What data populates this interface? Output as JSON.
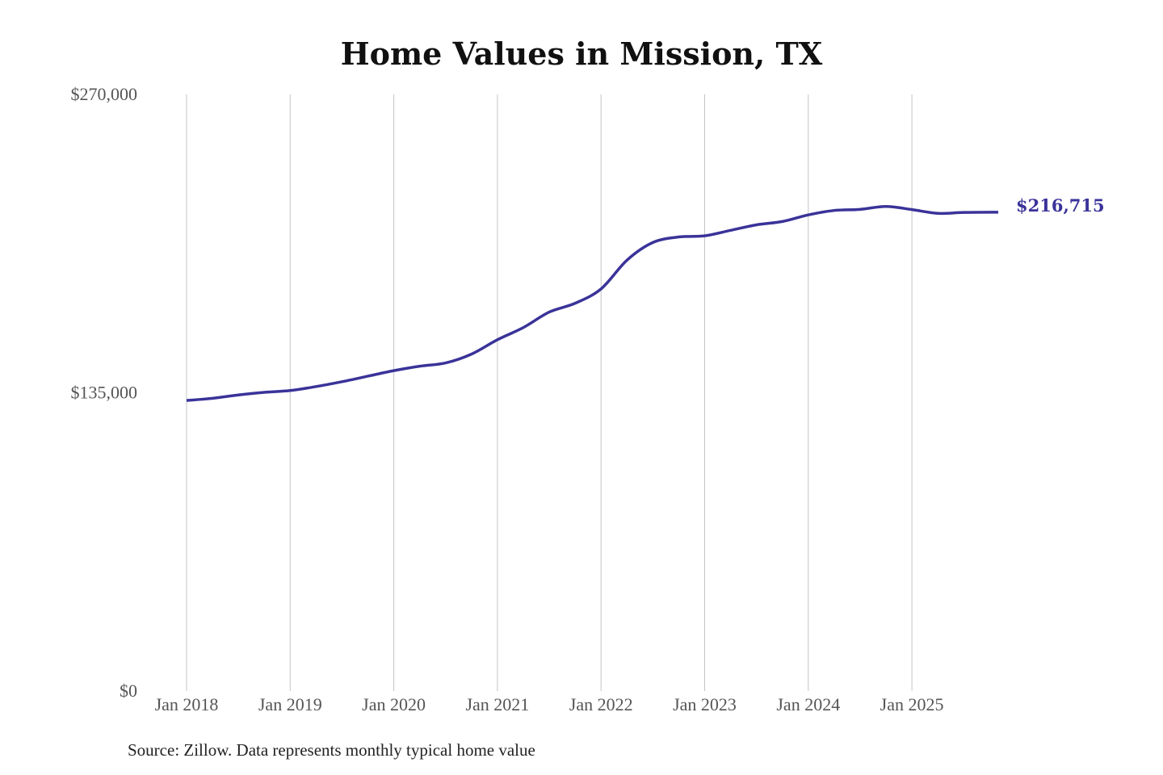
{
  "chart_data": {
    "type": "line",
    "title": "Home Values in Mission, TX",
    "source": "Source: Zillow. Data represents monthly typical home value",
    "xlabel": "",
    "ylabel": "",
    "ylim": [
      0,
      270000
    ],
    "y_ticks": [
      {
        "value": 0,
        "label": "$0"
      },
      {
        "value": 135000,
        "label": "$135,000"
      },
      {
        "value": 270000,
        "label": "$270,000"
      }
    ],
    "x_ticks": [
      {
        "value": "2018-01",
        "label": "Jan 2018"
      },
      {
        "value": "2019-01",
        "label": "Jan 2019"
      },
      {
        "value": "2020-01",
        "label": "Jan 2020"
      },
      {
        "value": "2021-01",
        "label": "Jan 2021"
      },
      {
        "value": "2022-01",
        "label": "Jan 2022"
      },
      {
        "value": "2023-01",
        "label": "Jan 2023"
      },
      {
        "value": "2024-01",
        "label": "Jan 2024"
      },
      {
        "value": "2025-01",
        "label": "Jan 2025"
      }
    ],
    "grid": "vertical",
    "line_color": "#3a3399",
    "end_label": "$216,715",
    "series": [
      {
        "x": [
          "2018-01",
          "2018-04",
          "2018-07",
          "2018-10",
          "2019-01",
          "2019-04",
          "2019-07",
          "2019-10",
          "2020-01",
          "2020-04",
          "2020-07",
          "2020-10",
          "2021-01",
          "2021-04",
          "2021-07",
          "2021-10",
          "2022-01",
          "2022-04",
          "2022-07",
          "2022-10",
          "2023-01",
          "2023-04",
          "2023-07",
          "2023-10",
          "2024-01",
          "2024-04",
          "2024-07",
          "2024-10",
          "2025-01",
          "2025-04",
          "2025-07",
          "2025-11"
        ],
        "values": [
          131500,
          132500,
          134000,
          135200,
          136000,
          137800,
          140000,
          142500,
          145000,
          147000,
          148500,
          152500,
          159000,
          164500,
          171500,
          175500,
          182000,
          195000,
          203000,
          205500,
          206000,
          208500,
          211000,
          212500,
          215500,
          217500,
          218000,
          219300,
          217900,
          216200,
          216600,
          216715
        ]
      }
    ]
  }
}
